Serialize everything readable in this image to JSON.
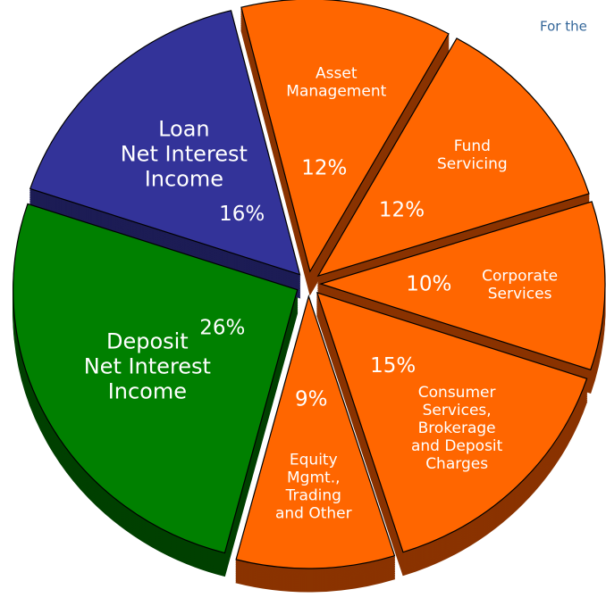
{
  "chart_data": {
    "type": "pie",
    "subtitle": "For the",
    "categories": [
      [
        "Asset",
        "Management"
      ],
      [
        "Fund",
        "Servicing"
      ],
      [
        "Corporate",
        "Services"
      ],
      [
        "Consumer",
        "Services,",
        "Brokerage",
        "and Deposit",
        "Charges"
      ],
      [
        "Equity",
        "Mgmt.,",
        "Trading",
        "and Other"
      ],
      [
        "Deposit",
        "Net Interest",
        "Income"
      ],
      [
        "Loan",
        "Net Interest",
        "Income"
      ]
    ],
    "values": [
      12,
      12,
      10,
      15,
      9,
      26,
      16
    ],
    "value_labels": [
      "12%",
      "12%",
      "10%",
      "15%",
      "9%",
      "26%",
      "16%"
    ],
    "colors": [
      "#ff6600",
      "#ff6600",
      "#ff6600",
      "#ff6600",
      "#ff6600",
      "#008000",
      "#333399"
    ],
    "side_colors": [
      "#8a3300",
      "#8a3300",
      "#8a3300",
      "#8a3300",
      "#8a3300",
      "#004000",
      "#1c1c55"
    ]
  }
}
